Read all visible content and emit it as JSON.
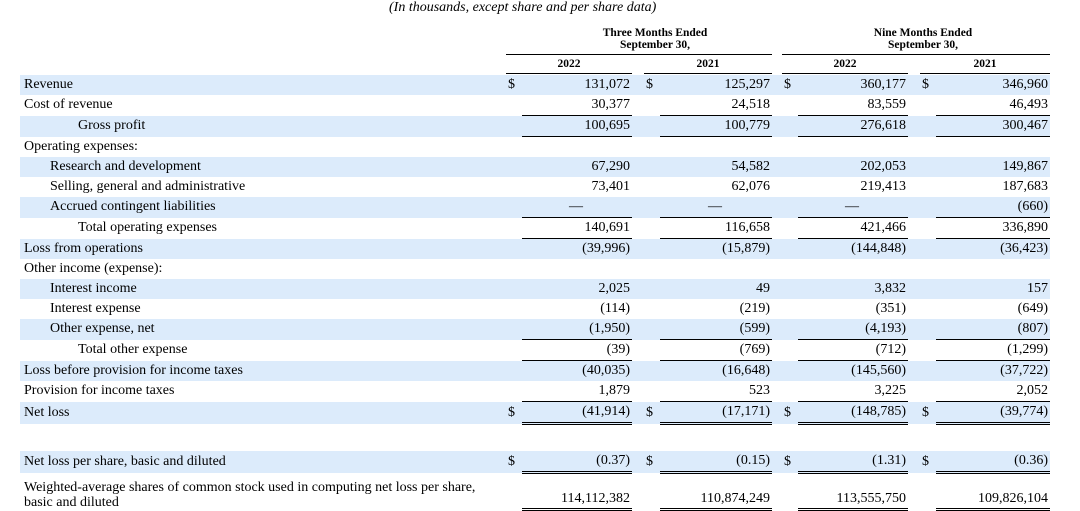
{
  "caption": "(In thousands, except share and per share data)",
  "column_groups": [
    {
      "line1": "Three Months Ended",
      "line2": "September 30,"
    },
    {
      "line1": "Nine Months Ended",
      "line2": "September 30,"
    }
  ],
  "years": [
    "2022",
    "2021",
    "2022",
    "2021"
  ],
  "currency_symbol": "$",
  "rows": [
    {
      "label": "Revenue",
      "values": [
        "131,072",
        "125,297",
        "360,177",
        "346,960"
      ]
    },
    {
      "label": "Cost of revenue",
      "values": [
        "30,377",
        "24,518",
        "83,559",
        "46,493"
      ]
    },
    {
      "label": "Gross profit",
      "values": [
        "100,695",
        "100,779",
        "276,618",
        "300,467"
      ]
    },
    {
      "label": "Operating expenses:",
      "values": [
        "",
        "",
        "",
        ""
      ]
    },
    {
      "label": "Research and development",
      "values": [
        "67,290",
        "54,582",
        "202,053",
        "149,867"
      ]
    },
    {
      "label": "Selling, general and administrative",
      "values": [
        "73,401",
        "62,076",
        "219,413",
        "187,683"
      ]
    },
    {
      "label": "Accrued contingent liabilities",
      "values": [
        "—",
        "—",
        "—",
        "(660)"
      ]
    },
    {
      "label": "Total operating expenses",
      "values": [
        "140,691",
        "116,658",
        "421,466",
        "336,890"
      ]
    },
    {
      "label": "Loss from operations",
      "values": [
        "(39,996)",
        "(15,879)",
        "(144,848)",
        "(36,423)"
      ]
    },
    {
      "label": "Other income (expense):",
      "values": [
        "",
        "",
        "",
        ""
      ]
    },
    {
      "label": "Interest income",
      "values": [
        "2,025",
        "49",
        "3,832",
        "157"
      ]
    },
    {
      "label": "Interest expense",
      "values": [
        "(114)",
        "(219)",
        "(351)",
        "(649)"
      ]
    },
    {
      "label": "Other expense, net",
      "values": [
        "(1,950)",
        "(599)",
        "(4,193)",
        "(807)"
      ]
    },
    {
      "label": "Total other expense",
      "values": [
        "(39)",
        "(769)",
        "(712)",
        "(1,299)"
      ]
    },
    {
      "label": "Loss before provision for income taxes",
      "values": [
        "(40,035)",
        "(16,648)",
        "(145,560)",
        "(37,722)"
      ]
    },
    {
      "label": "Provision for income taxes",
      "values": [
        "1,879",
        "523",
        "3,225",
        "2,052"
      ]
    },
    {
      "label": "Net loss",
      "values": [
        "(41,914)",
        "(17,171)",
        "(148,785)",
        "(39,774)"
      ]
    },
    {
      "label": "Net loss per share, basic and diluted",
      "values": [
        "(0.37)",
        "(0.15)",
        "(1.31)",
        "(0.36)"
      ]
    },
    {
      "label": "Weighted-average shares of common stock used in computing net loss per share, basic and diluted",
      "values": [
        "114,112,382",
        "110,874,249",
        "113,555,750",
        "109,826,104"
      ]
    }
  ]
}
